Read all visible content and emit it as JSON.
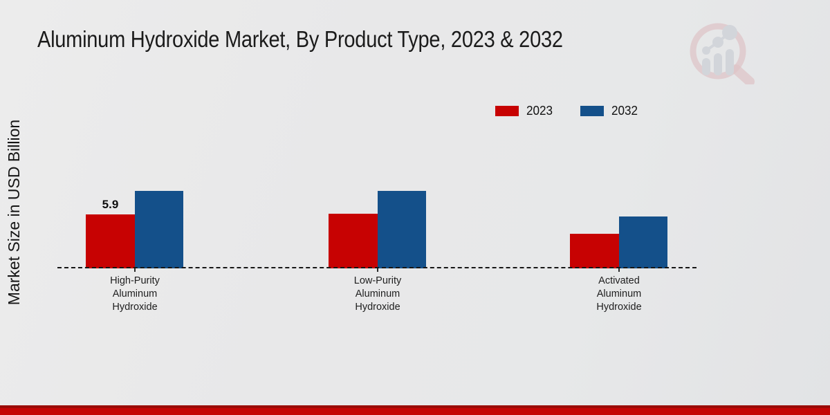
{
  "page": {
    "title": "Aluminum Hydroxide Market, By Product Type, 2023 & 2032",
    "y_axis_label": "Market Size in USD Billion"
  },
  "legend": {
    "position": "top-right",
    "items": [
      {
        "label": "2023",
        "color": "#c70202"
      },
      {
        "label": "2032",
        "color": "#14508a"
      }
    ]
  },
  "chart_data": {
    "type": "bar",
    "title": "Aluminum Hydroxide Market, By Product Type, 2023 & 2032",
    "xlabel": "",
    "ylabel": "Market Size in USD Billion",
    "categories": [
      "High-Purity Aluminum Hydroxide",
      "Low-Purity Aluminum Hydroxide",
      "Activated Aluminum Hydroxide"
    ],
    "category_lines": [
      [
        "High-Purity",
        "Aluminum",
        "Hydroxide"
      ],
      [
        "Low-Purity",
        "Aluminum",
        "Hydroxide"
      ],
      [
        "Activated",
        "Aluminum",
        "Hydroxide"
      ]
    ],
    "series": [
      {
        "name": "2023",
        "color": "#c70202",
        "values": [
          5.9,
          6.0,
          3.8
        ]
      },
      {
        "name": "2032",
        "color": "#14508a",
        "values": [
          8.5,
          8.5,
          5.7
        ]
      }
    ],
    "data_labels": [
      {
        "series_index": 0,
        "category_index": 0,
        "text": "5.9"
      }
    ],
    "ylim": [
      0,
      9
    ],
    "grid": false,
    "baseline_style": "dashed",
    "legend_position": "top-right"
  },
  "colors": {
    "background": "#e8e8e9",
    "footer_band": "#c40404",
    "footer_band_edge": "#9a0b06",
    "baseline": "#161616",
    "logo_ring": "#dbb0b4",
    "logo_bars": "#c7cbd2"
  },
  "logo": {
    "name": "magnifier-growth-chart-logo"
  }
}
